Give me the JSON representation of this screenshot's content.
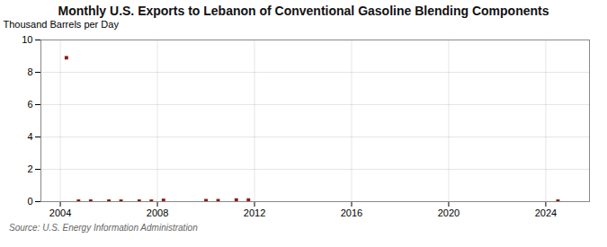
{
  "chart_data": {
    "type": "scatter",
    "title": "Monthly U.S. Exports to Lebanon of Conventional Gasoline Blending Components",
    "ylabel": "Thousand Barrels per Day",
    "source": "Source: U.S. Energy Information Administration",
    "x": [
      2004.25,
      2004.75,
      2005.25,
      2006.0,
      2006.5,
      2007.25,
      2007.75,
      2008.25,
      2010.0,
      2010.5,
      2011.25,
      2011.75,
      2024.5
    ],
    "values": [
      8.9,
      0.03,
      0.03,
      0.03,
      0.03,
      0.03,
      0.03,
      0.08,
      0.06,
      0.06,
      0.1,
      0.1,
      0.03
    ],
    "color": "#8b1a1a",
    "marker": "square",
    "xlim": [
      2003.2,
      2025.8
    ],
    "xticks": [
      2004,
      2008,
      2012,
      2016,
      2020,
      2024
    ],
    "ylim": [
      0,
      10
    ],
    "yticks": [
      0,
      2,
      4,
      6,
      8,
      10
    ],
    "grid": true
  }
}
